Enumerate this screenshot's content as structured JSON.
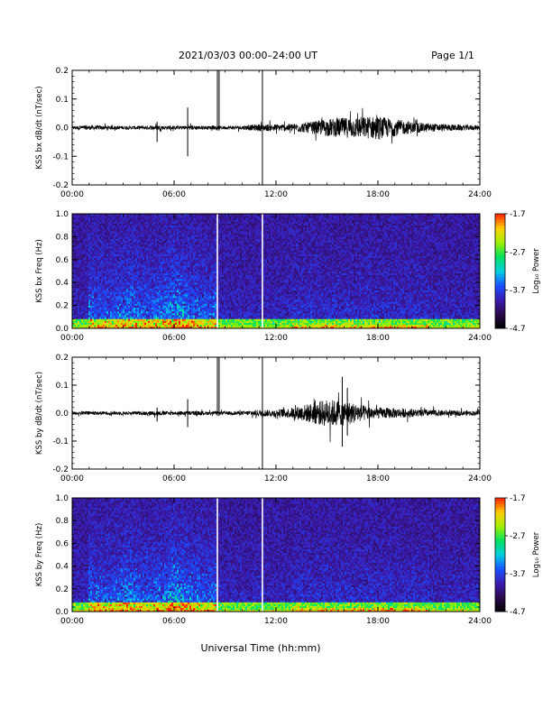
{
  "header": {
    "title": "2021/03/03  00:00–24:00 UT",
    "page": "Page 1/1"
  },
  "footer": {
    "xlabel": "Universal Time (hh:mm)"
  },
  "colors": {
    "spectrogram_scale": [
      "#000000",
      "#2a0a4a",
      "#3a1bb0",
      "#1a50ff",
      "#00d0e0",
      "#00e060",
      "#a0f000",
      "#ffd000",
      "#ff2000"
    ]
  },
  "chart_data": [
    {
      "type": "line",
      "panel": "bx-dbdt",
      "ylabel": "KSS bx dB/dt (nT/sec)",
      "xlim": [
        0,
        24
      ],
      "ylim": [
        -0.2,
        0.2
      ],
      "xticks": [
        "00:00",
        "06:00",
        "12:00",
        "18:00",
        "24:00"
      ],
      "yticks": [
        "-0.2",
        "-0.1",
        "0.0",
        "0.1",
        "0.2"
      ],
      "x_unit": "hours UT",
      "envelope": [
        {
          "x": 0,
          "amp": 0.006
        },
        {
          "x": 1,
          "amp": 0.008
        },
        {
          "x": 2,
          "amp": 0.007
        },
        {
          "x": 3,
          "amp": 0.006
        },
        {
          "x": 4,
          "amp": 0.006
        },
        {
          "x": 5,
          "amp": 0.008
        },
        {
          "x": 6,
          "amp": 0.006
        },
        {
          "x": 7,
          "amp": 0.008
        },
        {
          "x": 8,
          "amp": 0.006
        },
        {
          "x": 9,
          "amp": 0.006
        },
        {
          "x": 10,
          "amp": 0.007
        },
        {
          "x": 11,
          "amp": 0.012
        },
        {
          "x": 12,
          "amp": 0.012
        },
        {
          "x": 13,
          "amp": 0.014
        },
        {
          "x": 14,
          "amp": 0.02
        },
        {
          "x": 15,
          "amp": 0.03
        },
        {
          "x": 16,
          "amp": 0.035
        },
        {
          "x": 17,
          "amp": 0.038
        },
        {
          "x": 18,
          "amp": 0.04
        },
        {
          "x": 19,
          "amp": 0.03
        },
        {
          "x": 20,
          "amp": 0.02
        },
        {
          "x": 21,
          "amp": 0.015
        },
        {
          "x": 22,
          "amp": 0.012
        },
        {
          "x": 23,
          "amp": 0.01
        },
        {
          "x": 24,
          "amp": 0.008
        }
      ],
      "spikes": [
        {
          "x": 5.0,
          "min": -0.05,
          "max": 0.02
        },
        {
          "x": 6.8,
          "min": -0.1,
          "max": 0.07
        },
        {
          "x": 8.55,
          "min": -0.01,
          "max": 0.22
        },
        {
          "x": 8.65,
          "min": -0.01,
          "max": 0.22
        },
        {
          "x": 11.2,
          "min": -0.2,
          "max": 0.22
        }
      ]
    },
    {
      "type": "heatmap",
      "panel": "bx-spectrogram",
      "ylabel": "KSS bx Freq (Hz)",
      "xlim": [
        0,
        24
      ],
      "ylim": [
        0,
        1.0
      ],
      "xticks": [
        "00:00",
        "06:00",
        "12:00",
        "18:00",
        "24:00"
      ],
      "yticks": [
        "0.0",
        "0.2",
        "0.4",
        "0.6",
        "0.8",
        "1.0"
      ],
      "colorbar": {
        "label": "Log₁₀ Power",
        "ticks": [
          "-1.7",
          "-2.7",
          "-3.7",
          "-4.7"
        ],
        "range": [
          -4.7,
          -1.7
        ]
      },
      "gaps": [
        8.55,
        11.2
      ]
    },
    {
      "type": "line",
      "panel": "by-dbdt",
      "ylabel": "KSS by dB/dt (nT/sec)",
      "xlim": [
        0,
        24
      ],
      "ylim": [
        -0.2,
        0.2
      ],
      "xticks": [
        "00:00",
        "06:00",
        "12:00",
        "18:00",
        "24:00"
      ],
      "yticks": [
        "-0.2",
        "-0.1",
        "0.0",
        "0.1",
        "0.2"
      ],
      "x_unit": "hours UT",
      "envelope": [
        {
          "x": 0,
          "amp": 0.006
        },
        {
          "x": 1,
          "amp": 0.007
        },
        {
          "x": 2,
          "amp": 0.006
        },
        {
          "x": 3,
          "amp": 0.006
        },
        {
          "x": 4,
          "amp": 0.006
        },
        {
          "x": 5,
          "amp": 0.008
        },
        {
          "x": 6,
          "amp": 0.006
        },
        {
          "x": 7,
          "amp": 0.008
        },
        {
          "x": 8,
          "amp": 0.006
        },
        {
          "x": 9,
          "amp": 0.006
        },
        {
          "x": 10,
          "amp": 0.007
        },
        {
          "x": 11,
          "amp": 0.012
        },
        {
          "x": 12,
          "amp": 0.012
        },
        {
          "x": 13,
          "amp": 0.02
        },
        {
          "x": 14,
          "amp": 0.035
        },
        {
          "x": 15,
          "amp": 0.05
        },
        {
          "x": 16,
          "amp": 0.045
        },
        {
          "x": 17,
          "amp": 0.03
        },
        {
          "x": 18,
          "amp": 0.02
        },
        {
          "x": 19,
          "amp": 0.018
        },
        {
          "x": 20,
          "amp": 0.014
        },
        {
          "x": 21,
          "amp": 0.012
        },
        {
          "x": 22,
          "amp": 0.01
        },
        {
          "x": 23,
          "amp": 0.009
        },
        {
          "x": 24,
          "amp": 0.008
        }
      ],
      "spikes": [
        {
          "x": 5.0,
          "min": -0.03,
          "max": 0.02
        },
        {
          "x": 6.8,
          "min": -0.05,
          "max": 0.05
        },
        {
          "x": 8.55,
          "min": -0.01,
          "max": 0.22
        },
        {
          "x": 8.65,
          "min": -0.01,
          "max": 0.22
        },
        {
          "x": 11.2,
          "min": -0.22,
          "max": 0.22
        },
        {
          "x": 15.9,
          "min": -0.12,
          "max": 0.13
        },
        {
          "x": 16.2,
          "min": -0.08,
          "max": 0.09
        }
      ]
    },
    {
      "type": "heatmap",
      "panel": "by-spectrogram",
      "ylabel": "KSS by Freq (Hz)",
      "xlim": [
        0,
        24
      ],
      "ylim": [
        0,
        1.0
      ],
      "xticks": [
        "00:00",
        "06:00",
        "12:00",
        "18:00",
        "24:00"
      ],
      "yticks": [
        "0.0",
        "0.2",
        "0.4",
        "0.6",
        "0.8",
        "1.0"
      ],
      "colorbar": {
        "label": "Log₁₀ Power",
        "ticks": [
          "-1.7",
          "-2.7",
          "-3.7",
          "-4.7"
        ],
        "range": [
          -4.7,
          -1.7
        ]
      },
      "gaps": [
        8.55,
        11.2
      ]
    }
  ]
}
